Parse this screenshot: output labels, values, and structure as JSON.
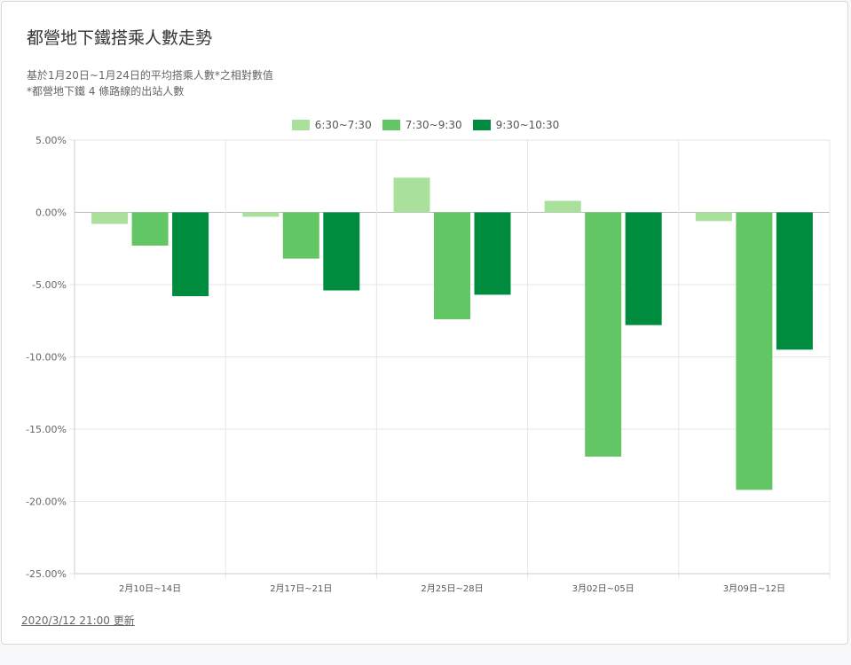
{
  "title": "都營地下鐵搭乘人數走勢",
  "subtitle_1": "基於1月20日~1月24日的平均搭乘人數*之相對數值",
  "subtitle_2": "*都營地下鐵 4 條路線的出站人數",
  "footer": "2020/3/12 21:00 更新",
  "chart_data": {
    "type": "bar",
    "categories": [
      "2月10日~14日",
      "2月17日~21日",
      "2月25日~28日",
      "3月02日~05日",
      "3月09日~12日"
    ],
    "series": [
      {
        "name": "6:30~7:30",
        "color": "#a8e09c",
        "values": [
          -0.8,
          -0.3,
          2.4,
          0.8,
          -0.6
        ]
      },
      {
        "name": "7:30~9:30",
        "color": "#63c665",
        "values": [
          -2.3,
          -3.2,
          -7.4,
          -16.9,
          -19.2
        ]
      },
      {
        "name": "9:30~10:30",
        "color": "#008c3f",
        "values": [
          -5.8,
          -5.4,
          -5.7,
          -7.8,
          -9.5
        ]
      }
    ],
    "y_ticks": [
      "5.00%",
      "0.00%",
      "-5.00%",
      "-10.00%",
      "-15.00%",
      "-20.00%",
      "-25.00%"
    ],
    "ylim": [
      -25,
      5
    ],
    "legend_position": "top-center",
    "grid": true
  }
}
